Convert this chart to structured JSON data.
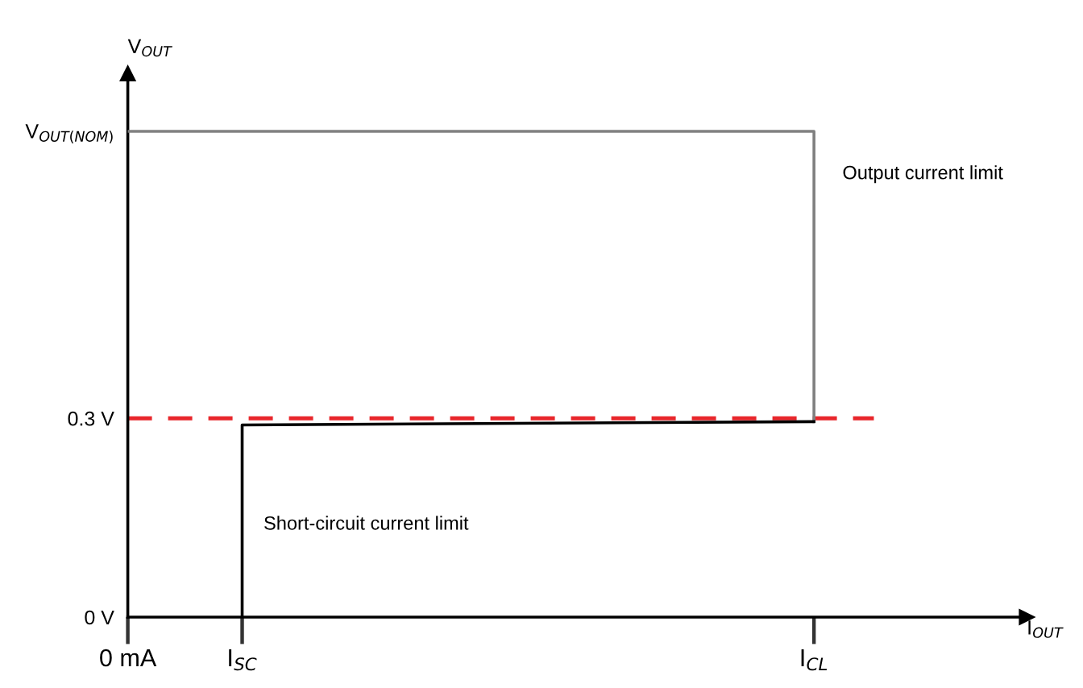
{
  "chart_data": {
    "type": "line",
    "ylabel": "V$_{OUT}$",
    "categories": [
      "0 mA",
      "I$_{SC}$",
      null,
      null,
      null,
      null,
      "I$_{CL}$"
    ],
    "series": [
      {
        "color": "#808080",
        "x": [
          "0 mA",
          "I$_{CL}$",
          "I$_{CL}$"
        ],
        "values": [
          0.733,
          0.733,
          0.295
        ]
      },
      {
        "color": "#000000",
        "x": [
          "I$_{CL}$",
          "I$_{SC}$",
          "I$_{SC}$"
        ],
        "values": [
          0.295,
          0.29,
          0
        ]
      }
    ],
    "ylim": [
      0,
      0.82
    ],
    "yticks": [
      {
        "value": 0,
        "label": "0 V"
      },
      {
        "value": 0.3,
        "label": "0.3 V"
      },
      {
        "value": 0.733,
        "label": "V$_{OUT(NOM)}$"
      }
    ],
    "ref_lines": [
      {
        "axis": "y",
        "value": 0.3,
        "color": "#e8262b",
        "line_style": "dashed"
      }
    ],
    "annotations": [
      "Output current limit",
      "Short-circuit current limit",
      "I$_{OUT}$"
    ],
    "grid": false,
    "legend": false,
    "marker": "none",
    "line_style": "solid"
  }
}
